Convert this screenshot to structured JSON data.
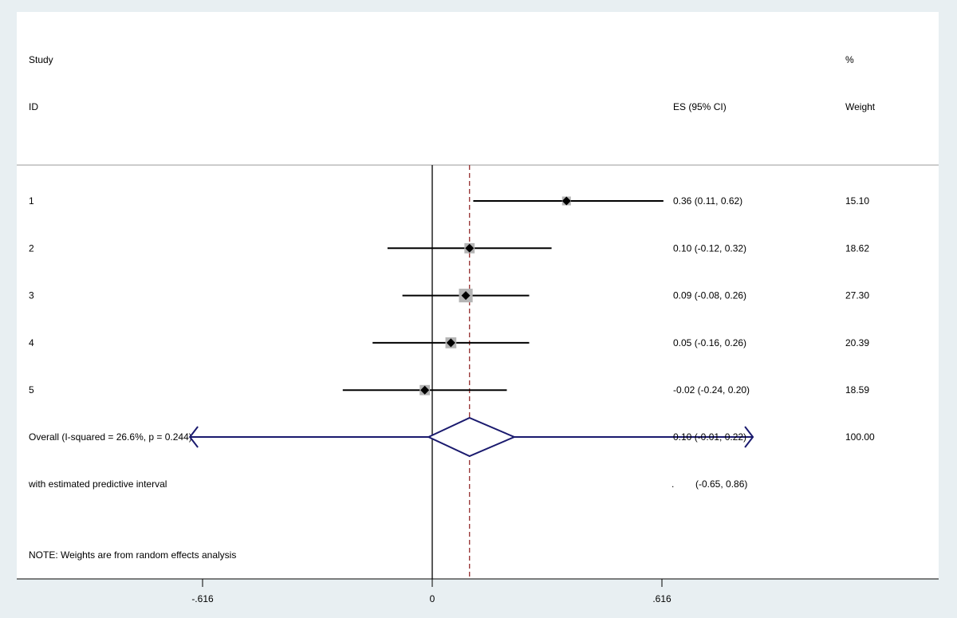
{
  "chart_data": {
    "type": "forest",
    "headers": {
      "study_line1": "Study",
      "study_line2": "ID",
      "es": "ES (95% CI)",
      "weight_line1": "%",
      "weight_line2": "Weight"
    },
    "studies": [
      {
        "id": "1",
        "es": 0.36,
        "lo": 0.11,
        "hi": 0.62,
        "es_text": "0.36 (0.11, 0.62)",
        "weight": 15.1,
        "weight_text": "15.10"
      },
      {
        "id": "2",
        "es": 0.1,
        "lo": -0.12,
        "hi": 0.32,
        "es_text": "0.10 (-0.12, 0.32)",
        "weight": 18.62,
        "weight_text": "18.62"
      },
      {
        "id": "3",
        "es": 0.09,
        "lo": -0.08,
        "hi": 0.26,
        "es_text": "0.09 (-0.08, 0.26)",
        "weight": 27.3,
        "weight_text": "27.30"
      },
      {
        "id": "4",
        "es": 0.05,
        "lo": -0.16,
        "hi": 0.26,
        "es_text": "0.05 (-0.16, 0.26)",
        "weight": 20.39,
        "weight_text": "20.39"
      },
      {
        "id": "5",
        "es": -0.02,
        "lo": -0.24,
        "hi": 0.2,
        "es_text": "-0.02 (-0.24, 0.20)",
        "weight": 18.59,
        "weight_text": "18.59"
      }
    ],
    "overall": {
      "label": "Overall  (I-squared = 26.6%, p = 0.244)",
      "es": 0.1,
      "lo": -0.01,
      "hi": 0.22,
      "es_text": "0.10 (-0.01, 0.22)",
      "weight_text": "100.00",
      "pi_lo": -0.65,
      "pi_hi": 0.86
    },
    "predictive": {
      "label": "with estimated predictive interval",
      "dot": ".",
      "text": "(-0.65, 0.86)"
    },
    "note": "NOTE: Weights are from random effects analysis",
    "x_axis": {
      "ticks": [
        -0.616,
        0,
        0.616
      ],
      "tick_labels": [
        "-.616",
        "0",
        ".616"
      ],
      "range": [
        -0.616,
        0.616
      ]
    },
    "colors": {
      "background": "#e8eff2",
      "panel": "#ffffff",
      "overall": "#1a1a6e",
      "reference": "#8b1a1a",
      "marker_box": "#b4b4b4",
      "divider": "#cccccc"
    }
  }
}
